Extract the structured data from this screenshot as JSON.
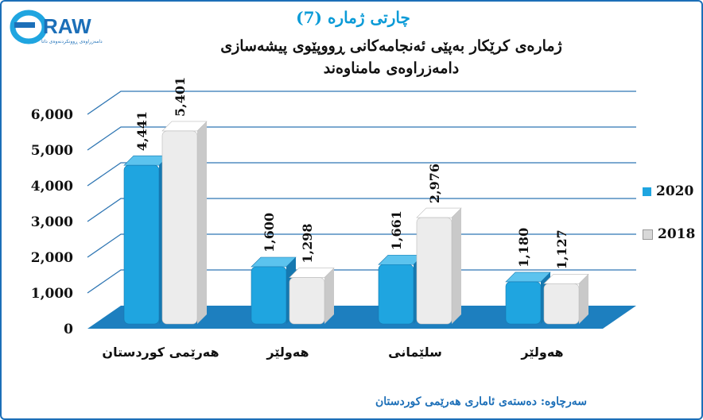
{
  "header": {
    "logo_text": "RAW",
    "logo_subtext": "دامەزراوەی ڕوونکردنەوەی داتا",
    "chart_number": "چارتی ژمارە (7)",
    "title": "ژمارەی کرێکار بەپێی ئەنجامەکانی ڕووپێوی پیشەسازی دامەزراوەی مامناوەند"
  },
  "source": "سەرچاوە: دەستەی ئاماری هەرێمی کوردستان",
  "colors": {
    "series_2020": "#1fa5e0",
    "series_2018": "#ececec",
    "floor": "#1d7fbf",
    "grid": "#2f76b3",
    "frame": "#1c6fb8"
  },
  "chart_data": {
    "type": "bar",
    "categories": [
      "هەرێمی کوردستان",
      "هەولێر",
      "سلێمانی",
      "هەولێر"
    ],
    "series": [
      {
        "name": "2020",
        "values": [
          4441,
          1600,
          1661,
          1180
        ],
        "labels": [
          "4,441",
          "1,600",
          "1,661",
          "1,180"
        ]
      },
      {
        "name": "2018",
        "values": [
          5401,
          1298,
          2976,
          1127
        ],
        "labels": [
          "5,401",
          "1,298",
          "2,976",
          "1,127"
        ]
      }
    ],
    "ylim": [
      0,
      6000
    ],
    "yticks": [
      "0",
      "1,000",
      "2,000",
      "3,000",
      "4,000",
      "5,000",
      "6,000"
    ],
    "grid": true,
    "legend": "right"
  }
}
